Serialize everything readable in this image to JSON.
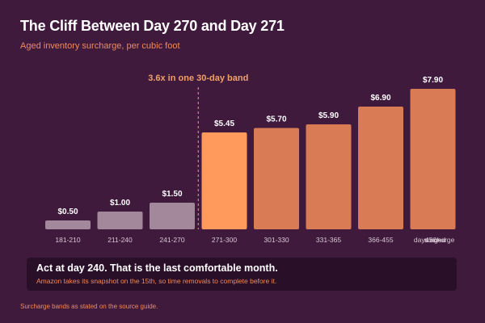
{
  "header": {
    "title": "The Cliff Between Day 270 and Day 271",
    "subtitle": "Aged inventory surcharge, per cubic foot"
  },
  "chart_data": {
    "type": "bar",
    "categories": [
      "181-210",
      "211-240",
      "241-270",
      "271-300",
      "301-330",
      "331-365",
      "366-455",
      "456+"
    ],
    "values": [
      0.5,
      1.0,
      1.5,
      5.45,
      5.7,
      5.9,
      6.9,
      7.9
    ],
    "value_labels": [
      "$0.50",
      "$1.00",
      "$1.50",
      "$5.45",
      "$5.70",
      "$5.90",
      "$6.90",
      "$7.90"
    ],
    "xlabel": "days aged",
    "ylabel": "surcharge",
    "ylim": [
      0,
      8.4
    ],
    "grid": false,
    "annotation": {
      "text": "3.6x in one 30-day band",
      "between": [
        "241-270",
        "271-300"
      ]
    },
    "colors": {
      "low": "#a3879a",
      "highlight": "#ff9a5c",
      "high": "#d97b54",
      "annotation": "#f0a06a"
    }
  },
  "callout": {
    "headline": "Act at day 240. That is the last comfortable month.",
    "body": "Amazon takes its snapshot on the 15th, so time removals to complete before it."
  },
  "footer": {
    "source": "Surcharge bands as stated on the source guide."
  }
}
